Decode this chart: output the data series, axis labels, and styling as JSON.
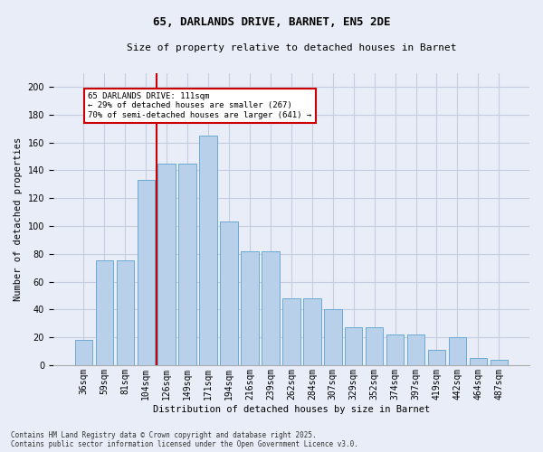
{
  "title_line1": "65, DARLANDS DRIVE, BARNET, EN5 2DE",
  "title_line2": "Size of property relative to detached houses in Barnet",
  "xlabel": "Distribution of detached houses by size in Barnet",
  "ylabel": "Number of detached properties",
  "categories": [
    "36sqm",
    "59sqm",
    "81sqm",
    "104sqm",
    "126sqm",
    "149sqm",
    "171sqm",
    "194sqm",
    "216sqm",
    "239sqm",
    "262sqm",
    "284sqm",
    "307sqm",
    "329sqm",
    "352sqm",
    "374sqm",
    "397sqm",
    "419sqm",
    "442sqm",
    "464sqm",
    "487sqm"
  ],
  "bar_heights": [
    18,
    75,
    75,
    133,
    145,
    145,
    165,
    103,
    82,
    82,
    48,
    48,
    40,
    27,
    27,
    22,
    22,
    11,
    20,
    5,
    4
  ],
  "bar_color": "#b8d0ea",
  "bar_edgecolor": "#6aaad4",
  "vline_color": "#cc0000",
  "annotation_text": "65 DARLANDS DRIVE: 111sqm\n← 29% of detached houses are smaller (267)\n70% of semi-detached houses are larger (641) →",
  "annotation_box_facecolor": "#ffffff",
  "annotation_box_edgecolor": "#cc0000",
  "ylim": [
    0,
    210
  ],
  "yticks": [
    0,
    20,
    40,
    60,
    80,
    100,
    120,
    140,
    160,
    180,
    200
  ],
  "footer_text": "Contains HM Land Registry data © Crown copyright and database right 2025.\nContains public sector information licensed under the Open Government Licence v3.0.",
  "bg_color": "#e8edf8",
  "grid_color": "#c5cde0",
  "title_fontsize": 9,
  "subtitle_fontsize": 8,
  "axis_label_fontsize": 7.5,
  "tick_fontsize": 7,
  "annot_fontsize": 6.5
}
